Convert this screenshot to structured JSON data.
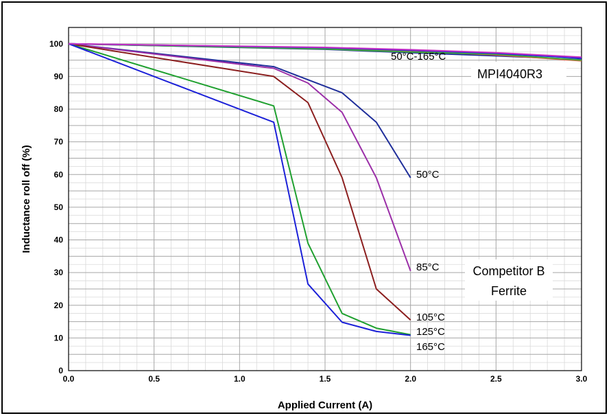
{
  "chart_data": {
    "type": "line",
    "title": "",
    "xlabel": "Applied Current (A)",
    "ylabel": "Inductance roll off (%)",
    "xlim": [
      0,
      3.0
    ],
    "ylim": [
      0,
      105
    ],
    "x_ticks": [
      "0.0",
      "0.5",
      "1.0",
      "1.5",
      "2.0",
      "2.5",
      "3.0"
    ],
    "y_ticks": [
      "0",
      "10",
      "20",
      "30",
      "40",
      "50",
      "60",
      "70",
      "80",
      "90",
      "100"
    ],
    "grid": true,
    "series": [
      {
        "color": "#1F2E9A",
        "x": [
          0,
          1.2,
          1.4,
          1.6,
          1.8,
          2.0
        ],
        "y": [
          100,
          93,
          89,
          85,
          76,
          59
        ]
      },
      {
        "color": "#9B2FA8",
        "x": [
          0,
          1.2,
          1.4,
          1.6,
          1.8,
          2.0
        ],
        "y": [
          100,
          92.5,
          88,
          79,
          59,
          30.5
        ]
      },
      {
        "color": "#8B1E1E",
        "x": [
          0,
          1.2,
          1.4,
          1.6,
          1.8,
          2.0
        ],
        "y": [
          100,
          90,
          82,
          59,
          25,
          15.5
        ]
      },
      {
        "color": "#1FA02F",
        "x": [
          0,
          1.2,
          1.4,
          1.6,
          1.8,
          2.0
        ],
        "y": [
          100,
          81,
          39,
          17.5,
          13,
          11
        ]
      },
      {
        "color": "#1B20D8",
        "x": [
          0,
          1.2,
          1.4,
          1.6,
          1.8,
          2.0
        ],
        "y": [
          100,
          76,
          26.5,
          14.8,
          12,
          10.8
        ]
      },
      {
        "color": "#1F2E9A",
        "x": [
          0,
          1.5,
          2.0,
          2.5,
          3.0
        ],
        "y": [
          100,
          98.3,
          97.3,
          96.3,
          95.2
        ]
      },
      {
        "color": "#D9603A",
        "x": [
          0,
          1.5,
          2.0,
          2.5,
          3.0
        ],
        "y": [
          100,
          98.6,
          97.8,
          96.6,
          94.8
        ]
      },
      {
        "color": "#3FA83F",
        "x": [
          0,
          1.5,
          2.0,
          2.5,
          3.0
        ],
        "y": [
          100,
          98.4,
          97.5,
          96.8,
          95.0
        ]
      },
      {
        "color": "#1B20D8",
        "x": [
          0,
          1.5,
          2.0,
          2.5,
          3.0
        ],
        "y": [
          100,
          98.8,
          98.0,
          97.1,
          95.6
        ]
      },
      {
        "color": "#C430C4",
        "x": [
          0,
          1.5,
          2.0,
          2.5,
          3.0
        ],
        "y": [
          100,
          98.9,
          98.2,
          97.3,
          95.9
        ]
      }
    ],
    "annotations": {
      "mpi_range": "50°C-165°C",
      "mpi_name": "MPI4040R3",
      "label_50": "50°C",
      "label_85": "85°C",
      "label_105": "105°C",
      "label_125": "125°C",
      "label_165": "165°C",
      "competitor_line1": "Competitor B",
      "competitor_line2": "Ferrite"
    }
  }
}
